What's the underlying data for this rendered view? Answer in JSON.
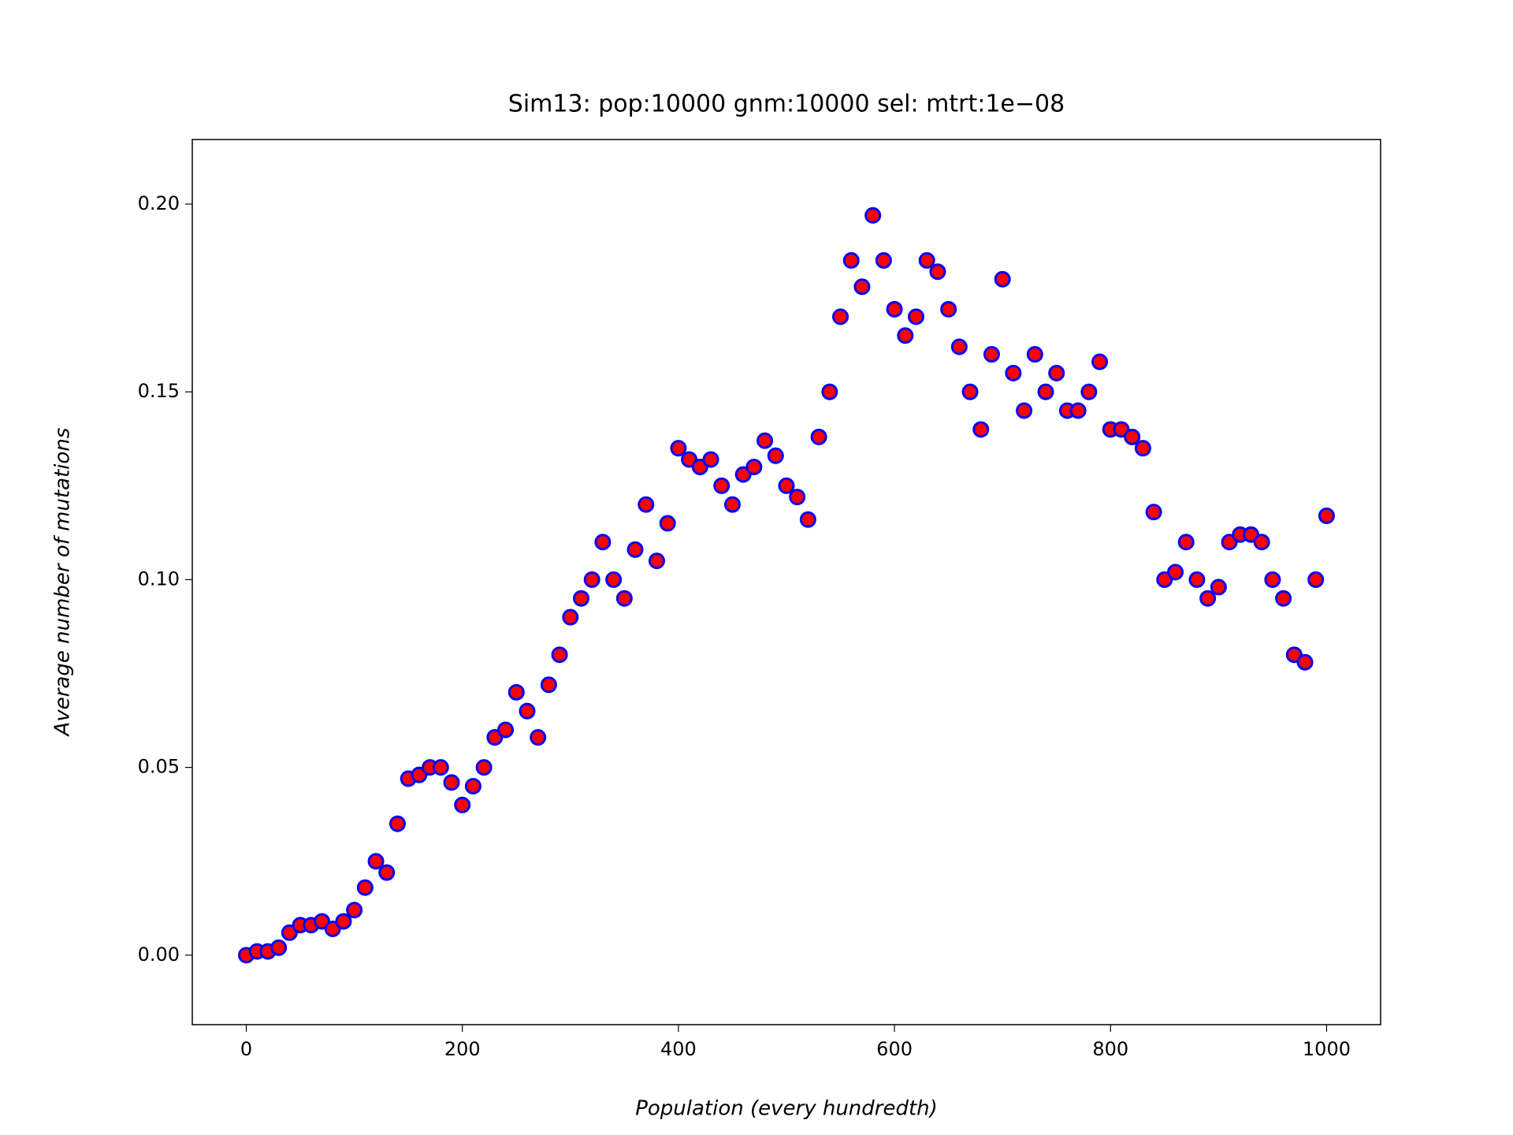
{
  "chart_data": {
    "type": "scatter",
    "title": "Sim13: pop:10000 gnm:10000 sel:  mtrt:1e−08",
    "x_label": "Population (every hundredth)",
    "y_label": "Average number of mutations",
    "marker_fill": "#ff0000",
    "marker_edge": "#0000ff",
    "xlim": [
      -50,
      1050
    ],
    "ylim": [
      -0.0185,
      0.2172
    ],
    "xticks": [
      0,
      200,
      400,
      600,
      800,
      1000
    ],
    "yticks": [
      {
        "value": 0,
        "label": "0.00"
      },
      0.05,
      {
        "value": 0.1,
        "label": "0.10"
      },
      0.15,
      {
        "value": 0.2,
        "label": "0.20"
      }
    ],
    "grid": false,
    "x": [
      0,
      10,
      20,
      30,
      40,
      50,
      60,
      70,
      80,
      90,
      100,
      110,
      120,
      130,
      140,
      150,
      160,
      170,
      180,
      190,
      200,
      210,
      220,
      230,
      240,
      250,
      260,
      270,
      280,
      290,
      300,
      310,
      320,
      330,
      340,
      350,
      360,
      370,
      380,
      390,
      400,
      410,
      420,
      430,
      440,
      450,
      460,
      470,
      480,
      490,
      500,
      510,
      520,
      530,
      540,
      550,
      560,
      570,
      580,
      590,
      600,
      610,
      620,
      630,
      640,
      650,
      660,
      670,
      680,
      690,
      700,
      710,
      720,
      730,
      740,
      750,
      760,
      770,
      780,
      790,
      800,
      810,
      820,
      830,
      840,
      850,
      860,
      870,
      880,
      890,
      900,
      910,
      920,
      930,
      940,
      950,
      960,
      970,
      980,
      990,
      1000
    ],
    "y": [
      0.0,
      0.001,
      0.001,
      0.002,
      0.006,
      0.008,
      0.008,
      0.009,
      0.007,
      0.009,
      0.012,
      0.018,
      0.025,
      0.022,
      0.035,
      0.047,
      0.048,
      0.05,
      0.05,
      0.046,
      0.04,
      0.045,
      0.05,
      0.058,
      0.06,
      0.07,
      0.065,
      0.058,
      0.072,
      0.08,
      0.09,
      0.095,
      0.1,
      0.11,
      0.1,
      0.095,
      0.108,
      0.12,
      0.105,
      0.115,
      0.135,
      0.132,
      0.13,
      0.132,
      0.125,
      0.12,
      0.128,
      0.13,
      0.137,
      0.133,
      0.125,
      0.122,
      0.116,
      0.138,
      0.15,
      0.17,
      0.185,
      0.178,
      0.197,
      0.185,
      0.172,
      0.165,
      0.17,
      0.185,
      0.182,
      0.172,
      0.162,
      0.15,
      0.14,
      0.16,
      0.18,
      0.155,
      0.145,
      0.16,
      0.15,
      0.155,
      0.145,
      0.145,
      0.15,
      0.158,
      0.14,
      0.14,
      0.138,
      0.135,
      0.118,
      0.1,
      0.102,
      0.11,
      0.1,
      0.095,
      0.098,
      0.11,
      0.112,
      0.112,
      0.11,
      0.1,
      0.095,
      0.08,
      0.078,
      0.1,
      0.117
    ]
  }
}
